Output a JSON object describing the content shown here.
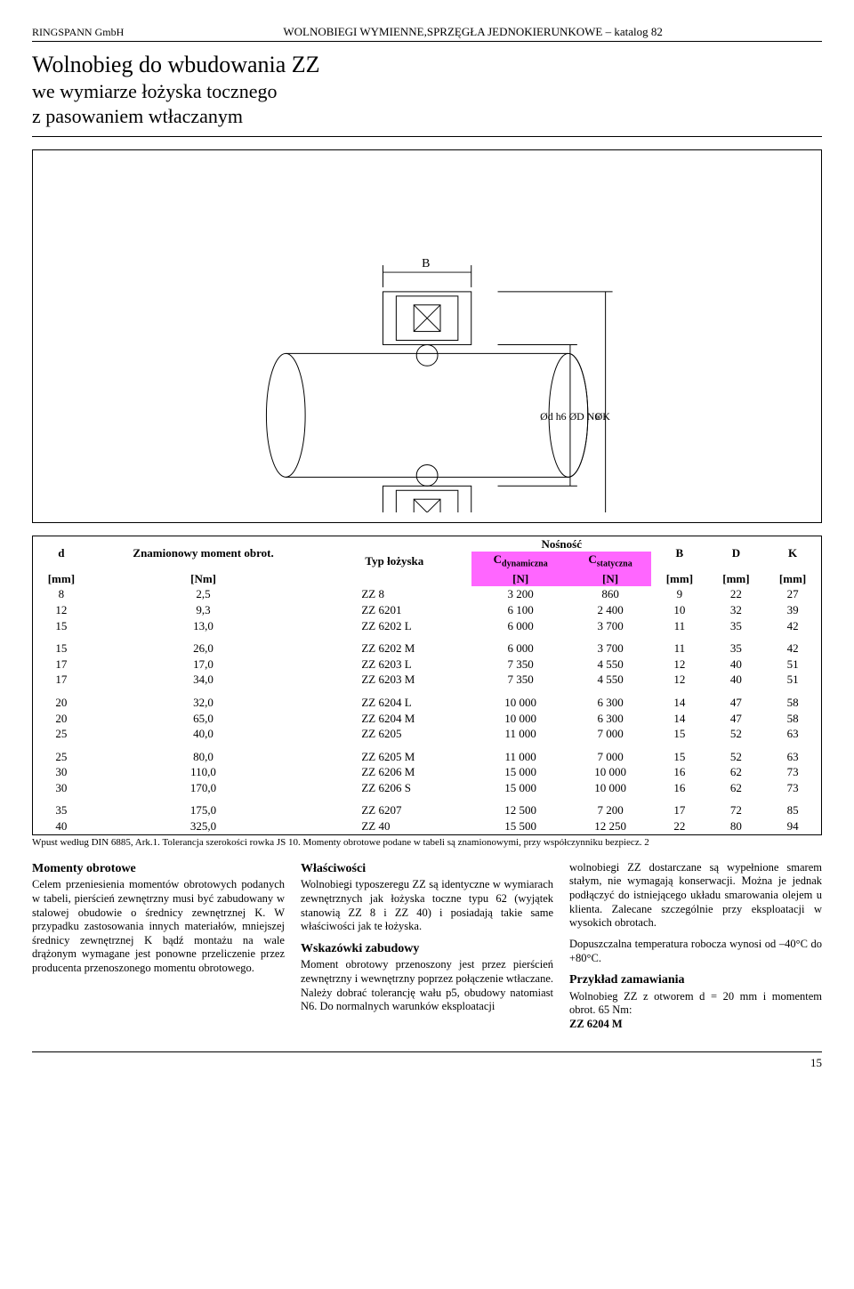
{
  "header": {
    "left": "RINGSPANN GmbH",
    "center": "WOLNOBIEGI WYMIENNE,SPRZĘGŁA JEDNOKIERUNKOWE – katalog 82"
  },
  "title": {
    "line1": "Wolnobieg do wbudowania ZZ",
    "line2": "we wymiarze łożyska tocznego",
    "line3": "z pasowaniem wtłaczanym"
  },
  "table": {
    "head": {
      "d": "d",
      "moment": "Znamionowy moment obrot.",
      "typ": "Typ łożyska",
      "nos": "Nośność",
      "B": "B",
      "D": "D",
      "K": "K",
      "cdyn": "Cdynamiczna",
      "cstat": "Cstatyczna",
      "mm": "[mm]",
      "Nm": "[Nm]",
      "N": "[N]"
    },
    "rows": [
      [
        "8",
        "2,5",
        "ZZ 8",
        "3 200",
        "860",
        "9",
        "22",
        "27"
      ],
      [
        "12",
        "9,3",
        "ZZ 6201",
        "6 100",
        "2 400",
        "10",
        "32",
        "39"
      ],
      [
        "15",
        "13,0",
        "ZZ 6202 L",
        "6 000",
        "3 700",
        "11",
        "35",
        "42"
      ],
      null,
      [
        "15",
        "26,0",
        "ZZ 6202 M",
        "6 000",
        "3 700",
        "11",
        "35",
        "42"
      ],
      [
        "17",
        "17,0",
        "ZZ 6203 L",
        "7 350",
        "4 550",
        "12",
        "40",
        "51"
      ],
      [
        "17",
        "34,0",
        "ZZ 6203 M",
        "7 350",
        "4 550",
        "12",
        "40",
        "51"
      ],
      null,
      [
        "20",
        "32,0",
        "ZZ 6204 L",
        "10 000",
        "6 300",
        "14",
        "47",
        "58"
      ],
      [
        "20",
        "65,0",
        "ZZ 6204 M",
        "10 000",
        "6 300",
        "14",
        "47",
        "58"
      ],
      [
        "25",
        "40,0",
        "ZZ 6205",
        "11 000",
        "7 000",
        "15",
        "52",
        "63"
      ],
      null,
      [
        "25",
        "80,0",
        "ZZ 6205 M",
        "11 000",
        "7 000",
        "15",
        "52",
        "63"
      ],
      [
        "30",
        "110,0",
        "ZZ 6206 M",
        "15 000",
        "10 000",
        "16",
        "62",
        "73"
      ],
      [
        "30",
        "170,0",
        "ZZ 6206 S",
        "15 000",
        "10 000",
        "16",
        "62",
        "73"
      ],
      null,
      [
        "35",
        "175,0",
        "ZZ 6207",
        "12 500",
        "7 200",
        "17",
        "72",
        "85"
      ],
      [
        "40",
        "325,0",
        "ZZ 40",
        "15 500",
        "12 250",
        "22",
        "80",
        "94"
      ]
    ],
    "footnote": "Wpust według DIN 6885, Ark.1. Tolerancja szerokości rowka JS 10. Momenty obrotowe podane w tabeli są znamionowymi, przy współczynniku bezpiecz. 2"
  },
  "text": {
    "col1": {
      "h": "Momenty obrotowe",
      "p": "Celem przeniesienia momentów obrotowych podanych w tabeli, pierścień zewnętrzny musi być zabudowany w stalowej obudowie o średnicy zewnętrznej K. W przypadku zastosowania innych materiałów, mniejszej średnicy zewnętrznej K bądź montażu na wale drążonym wymagane jest ponowne przeliczenie przez producenta przenoszonego momentu obrotowego."
    },
    "col2": {
      "h1": "Właściwości",
      "p1": "Wolnobiegi typoszeregu ZZ są identyczne w wymiarach zewnętrznych jak łożyska toczne typu 62 (wyjątek stanowią ZZ 8 i ZZ 40) i posiadają takie same właściwości jak te łożyska.",
      "h2": "Wskazówki zabudowy",
      "p2": "Moment obrotowy przenoszony jest przez pierścień zewnętrzny i wewnętrzny poprzez połączenie wtłaczane. Należy dobrać tolerancję wału p5, obudowy natomiast N6. Do normalnych warunków eksploatacji"
    },
    "col3": {
      "p1": "wolnobiegi ZZ dostarczane są wypełnione smarem stałym, nie wymagają konserwacji. Można je jednak podłączyć do istniejącego układu smarowania olejem u klienta. Zalecane szczególnie przy eksploatacji w wysokich obrotach.",
      "p2": "Dopuszczalna temperatura robocza wynosi od –40°C do +80°C.",
      "h": "Przykład zamawiania",
      "p3": "Wolnobieg ZZ z otworem d = 20 mm i momentem obrot. 65 Nm:",
      "code": "ZZ 6204 M"
    }
  },
  "pagenum": "15"
}
